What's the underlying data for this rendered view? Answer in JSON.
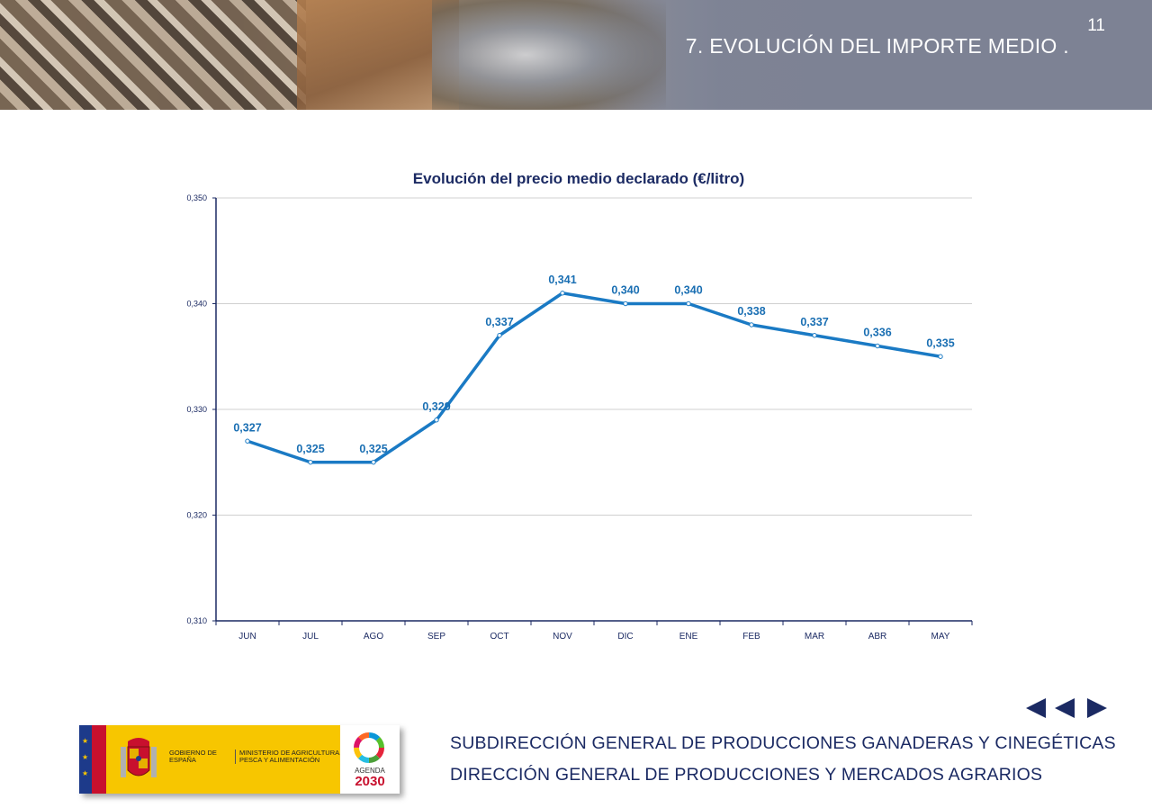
{
  "header": {
    "title": "7.  EVOLUCIÓN DEL IMPORTE MEDIO .",
    "page_number": "11"
  },
  "chart_data": {
    "type": "line",
    "title": "Evolución del precio medio declarado  (€/litro)",
    "xlabel": "",
    "ylabel": "",
    "categories": [
      "JUN",
      "JUL",
      "AGO",
      "SEP",
      "OCT",
      "NOV",
      "DIC",
      "ENE",
      "FEB",
      "MAR",
      "ABR",
      "MAY"
    ],
    "series": [
      {
        "values": [
          0.327,
          0.325,
          0.325,
          0.329,
          0.337,
          0.341,
          0.34,
          0.34,
          0.338,
          0.337,
          0.336,
          0.335
        ],
        "labels": [
          "0,327",
          "0,325",
          "0,325",
          "0,329",
          "0,337",
          "0,341",
          "0,340",
          "0,340",
          "0,338",
          "0,337",
          "0,336",
          "0,335"
        ]
      }
    ],
    "ylim": [
      0.31,
      0.35
    ],
    "yticks": [
      0.31,
      0.32,
      0.33,
      0.34,
      0.35
    ],
    "ytick_labels": [
      "0,310",
      "0,320",
      "0,330",
      "0,340",
      "0,350"
    ],
    "grid": true,
    "legend": "none",
    "colors": {
      "line": "#1a7ac4",
      "label": "#1a6fb3",
      "title": "#1b2a63",
      "axis": "#1b2a63",
      "grid": "#d0d0d0"
    }
  },
  "footer": {
    "line1": "SUBDIRECCIÓN GENERAL DE PRODUCCIONES GANADERAS Y CINEGÉTICAS",
    "line2": "DIRECCIÓN GENERAL DE PRODUCCIONES Y MERCADOS AGRARIOS",
    "logo": {
      "gov": "GOBIERNO DE ESPAÑA",
      "ministry": "MINISTERIO DE AGRICULTURA, PESCA Y ALIMENTACIÓN",
      "agenda": "AGENDA",
      "agenda_year": "2030"
    }
  },
  "navigation": {
    "icons": [
      "first-icon",
      "previous-icon",
      "next-icon"
    ]
  }
}
